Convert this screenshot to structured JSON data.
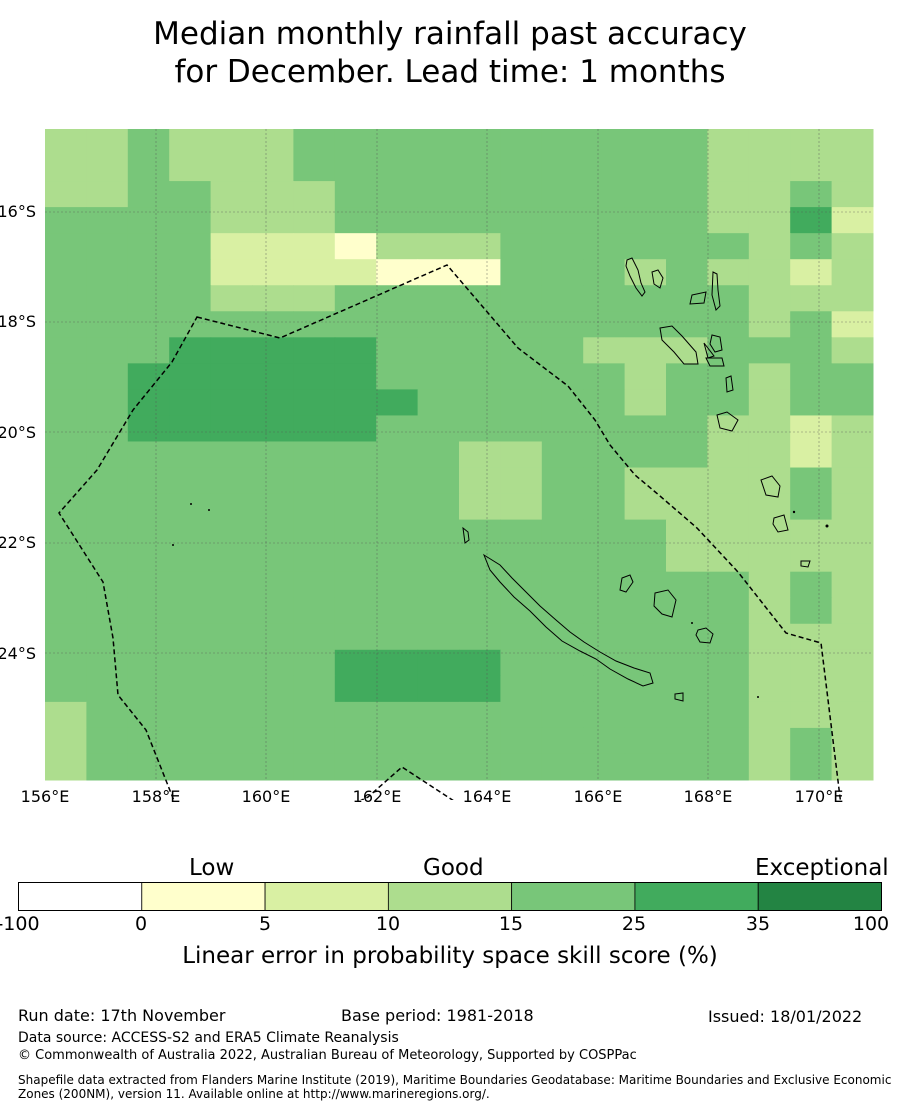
{
  "title_line1": "Median monthly rainfall past accuracy",
  "title_line2": "for December. Lead time: 1 months",
  "map": {
    "lat_labels": [
      "16°S",
      "18°S",
      "20°S",
      "22°S",
      "24°S"
    ],
    "lon_labels": [
      "156°E",
      "158°E",
      "160°E",
      "162°E",
      "164°E",
      "166°E",
      "168°E",
      "170°E"
    ],
    "cell_classes": [
      "33433344444444443333",
      "33433344444444443333",
      "33443334444444443343",
      "44443334444444443352",
      "44442221333444444343",
      "44442222111444343323",
      "44443334444444444333",
      "44444444444444444342",
      "44455555444443334443",
      "44555555444444344344",
      "44555555544444344344",
      "44555555444444443323",
      "44444444443344443323",
      "44444444443344333343",
      "44444444443344333343",
      "44444444444444433333",
      "44444444444444433333",
      "44444444444444444343",
      "44444444444444444343",
      "44444444444444444333",
      "44444445555444444333",
      "44444445555444444333",
      "34444444444444444333",
      "34444444444444444343",
      "34444444444444444343"
    ]
  },
  "legend": {
    "categories": [
      "Low",
      "Good",
      "Exceptional"
    ],
    "bins": [
      {
        "color": "#ffffff"
      },
      {
        "color": "#ffffcc"
      },
      {
        "color": "#d9f0a3"
      },
      {
        "color": "#addd8e"
      },
      {
        "color": "#78c679"
      },
      {
        "color": "#41ab5d"
      },
      {
        "color": "#238443"
      }
    ],
    "ticks": [
      "-100",
      "0",
      "5",
      "10",
      "15",
      "25",
      "35",
      "100"
    ],
    "title": "Linear error in probability space skill score (%)"
  },
  "footer": {
    "run_date": "Run date: 17th November",
    "base_period": "Base period: 1981-2018",
    "issued": "Issued: 18/01/2022",
    "data_source": "Data source: ACCESS-S2 and ERA5 Climate Reanalysis",
    "copyright": "© Commonwealth of Australia 2022, Australian Bureau of Meteorology, Supported by COSPPac",
    "shapefile_line1": "Shapefile data extracted from Flanders Marine Institute (2019), Maritime Boundaries Geodatabase: Maritime Boundaries and Exclusive Economic",
    "shapefile_line2": "Zones (200NM), version 11. Available online at http://www.marineregions.org/."
  },
  "colors": {
    "grid": "#555555",
    "boundary": "#000000",
    "coast": "#000000"
  }
}
